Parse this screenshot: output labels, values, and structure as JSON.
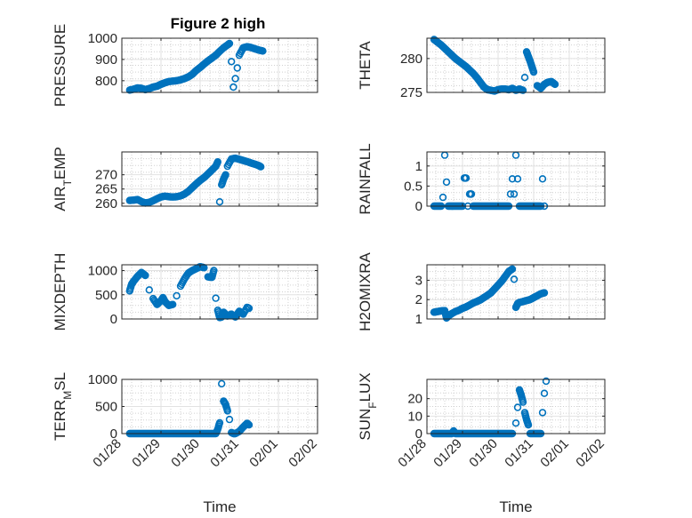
{
  "figure": {
    "title": "Figure 2 high"
  },
  "chart_data": [
    {
      "type": "scatter",
      "id": "pressure",
      "ylabel": "PRESSURE",
      "xlim": [
        "01/28",
        "02/02"
      ],
      "ylim": [
        745,
        1000
      ],
      "yticks": [
        800,
        900,
        1000
      ],
      "xticks": [],
      "marker_color": "#0072BD",
      "grid": true,
      "points": [
        [
          0.2,
          756
        ],
        [
          0.3,
          760
        ],
        [
          0.4,
          766
        ],
        [
          0.5,
          764
        ],
        [
          0.6,
          758
        ],
        [
          0.7,
          763
        ],
        [
          0.8,
          770
        ],
        [
          0.9,
          774
        ],
        [
          1.0,
          783
        ],
        [
          1.1,
          790
        ],
        [
          1.2,
          796
        ],
        [
          1.3,
          798
        ],
        [
          1.4,
          800
        ],
        [
          1.5,
          804
        ],
        [
          1.6,
          810
        ],
        [
          1.7,
          818
        ],
        [
          1.8,
          830
        ],
        [
          1.9,
          848
        ],
        [
          2.0,
          862
        ],
        [
          2.1,
          878
        ],
        [
          2.2,
          893
        ],
        [
          2.3,
          906
        ],
        [
          2.4,
          920
        ],
        [
          2.5,
          938
        ],
        [
          2.6,
          955
        ],
        [
          2.7,
          968
        ],
        [
          2.75,
          975
        ],
        [
          2.8,
          890
        ],
        [
          2.85,
          770
        ],
        [
          2.9,
          810
        ],
        [
          2.95,
          860
        ],
        [
          3.0,
          920
        ],
        [
          3.1,
          955
        ],
        [
          3.2,
          960
        ],
        [
          3.3,
          956
        ],
        [
          3.4,
          950
        ],
        [
          3.5,
          944
        ],
        [
          3.6,
          940
        ]
      ]
    },
    {
      "type": "scatter",
      "id": "theta",
      "ylabel": "THETA",
      "xlim": [
        "01/28",
        "02/02"
      ],
      "ylim": [
        275,
        283
      ],
      "yticks": [
        275,
        280
      ],
      "xticks": [],
      "marker_color": "#0072BD",
      "grid": true,
      "points": [
        [
          0.2,
          282.8
        ],
        [
          0.3,
          282.4
        ],
        [
          0.4,
          282.0
        ],
        [
          0.5,
          281.5
        ],
        [
          0.6,
          281.0
        ],
        [
          0.7,
          280.5
        ],
        [
          0.8,
          280.0
        ],
        [
          0.9,
          279.6
        ],
        [
          1.0,
          279.2
        ],
        [
          1.1,
          278.8
        ],
        [
          1.2,
          278.3
        ],
        [
          1.3,
          277.8
        ],
        [
          1.4,
          277.2
        ],
        [
          1.5,
          276.5
        ],
        [
          1.6,
          275.8
        ],
        [
          1.7,
          275.4
        ],
        [
          1.8,
          275.3
        ],
        [
          1.9,
          275.2
        ],
        [
          2.0,
          275.4
        ],
        [
          2.1,
          275.5
        ],
        [
          2.2,
          275.5
        ],
        [
          2.3,
          275.4
        ],
        [
          2.4,
          275.6
        ],
        [
          2.5,
          275.3
        ],
        [
          2.6,
          275.5
        ],
        [
          2.7,
          275.3
        ],
        [
          2.75,
          277.2
        ],
        [
          2.8,
          281.0
        ],
        [
          2.85,
          280.3
        ],
        [
          2.9,
          279.6
        ],
        [
          2.95,
          278.8
        ],
        [
          3.0,
          278.0
        ],
        [
          3.1,
          276.0
        ],
        [
          3.2,
          275.6
        ],
        [
          3.3,
          276.2
        ],
        [
          3.4,
          276.5
        ],
        [
          3.5,
          276.6
        ],
        [
          3.6,
          276.2
        ]
      ]
    },
    {
      "type": "scatter",
      "id": "airtemp",
      "ylabel": "AIR_TEMP",
      "xlim": [
        "01/28",
        "02/02"
      ],
      "ylim": [
        259,
        278
      ],
      "yticks": [
        260,
        265,
        270
      ],
      "xticks": [],
      "marker_color": "#0072BD",
      "grid": true,
      "points": [
        [
          0.2,
          261.0
        ],
        [
          0.3,
          261.1
        ],
        [
          0.4,
          261.3
        ],
        [
          0.5,
          260.6
        ],
        [
          0.6,
          260.1
        ],
        [
          0.7,
          260.3
        ],
        [
          0.8,
          260.9
        ],
        [
          0.9,
          261.6
        ],
        [
          1.0,
          262.2
        ],
        [
          1.1,
          262.5
        ],
        [
          1.2,
          262.3
        ],
        [
          1.3,
          262.2
        ],
        [
          1.4,
          262.3
        ],
        [
          1.5,
          262.6
        ],
        [
          1.6,
          263.2
        ],
        [
          1.7,
          264.2
        ],
        [
          1.8,
          265.5
        ],
        [
          1.9,
          266.8
        ],
        [
          2.0,
          268.0
        ],
        [
          2.1,
          269.0
        ],
        [
          2.2,
          270.3
        ],
        [
          2.3,
          271.6
        ],
        [
          2.4,
          273.0
        ],
        [
          2.45,
          274.5
        ],
        [
          2.5,
          260.5
        ],
        [
          2.55,
          266.5
        ],
        [
          2.6,
          268.5
        ],
        [
          2.65,
          270.0
        ],
        [
          2.7,
          273.0
        ],
        [
          2.8,
          275.5
        ],
        [
          2.9,
          275.8
        ],
        [
          3.0,
          275.4
        ],
        [
          3.1,
          275.0
        ],
        [
          3.2,
          274.6
        ],
        [
          3.3,
          274.1
        ],
        [
          3.4,
          273.7
        ],
        [
          3.5,
          273.2
        ],
        [
          3.55,
          272.8
        ]
      ]
    },
    {
      "type": "scatter",
      "id": "rainfall",
      "ylabel": "RAINFALL",
      "xlim": [
        "01/28",
        "02/02"
      ],
      "ylim": [
        0,
        1.35
      ],
      "yticks": [
        0,
        0.5,
        1
      ],
      "xticks": [],
      "marker_color": "#0072BD",
      "grid": true,
      "points": [
        [
          0.2,
          0
        ],
        [
          0.3,
          0
        ],
        [
          0.4,
          0
        ],
        [
          0.45,
          0.22
        ],
        [
          0.5,
          1.27
        ],
        [
          0.55,
          0.6
        ],
        [
          0.6,
          0
        ],
        [
          0.7,
          0
        ],
        [
          0.8,
          0
        ],
        [
          0.9,
          0
        ],
        [
          1.0,
          0
        ],
        [
          1.05,
          0.7
        ],
        [
          1.1,
          0.7
        ],
        [
          1.15,
          0
        ],
        [
          1.2,
          0.3
        ],
        [
          1.25,
          0.3
        ],
        [
          1.3,
          0
        ],
        [
          1.4,
          0
        ],
        [
          1.5,
          0
        ],
        [
          1.6,
          0
        ],
        [
          1.7,
          0
        ],
        [
          1.8,
          0
        ],
        [
          1.9,
          0
        ],
        [
          2.0,
          0
        ],
        [
          2.1,
          0
        ],
        [
          2.2,
          0
        ],
        [
          2.3,
          0
        ],
        [
          2.35,
          0.3
        ],
        [
          2.4,
          0.68
        ],
        [
          2.45,
          0.3
        ],
        [
          2.5,
          1.27
        ],
        [
          2.55,
          0.68
        ],
        [
          2.6,
          0
        ],
        [
          2.7,
          0
        ],
        [
          2.8,
          0
        ],
        [
          2.9,
          0
        ],
        [
          3.0,
          0
        ],
        [
          3.1,
          0
        ],
        [
          3.2,
          0
        ],
        [
          3.25,
          0.68
        ],
        [
          3.3,
          0
        ]
      ]
    },
    {
      "type": "scatter",
      "id": "mixdepth",
      "ylabel": "MIXDEPTH",
      "xlim": [
        "01/28",
        "02/02"
      ],
      "ylim": [
        0,
        1120
      ],
      "yticks": [
        0,
        500,
        1000
      ],
      "xticks": [],
      "marker_color": "#0072BD",
      "grid": true,
      "points": [
        [
          0.2,
          580
        ],
        [
          0.25,
          720
        ],
        [
          0.3,
          780
        ],
        [
          0.4,
          880
        ],
        [
          0.5,
          960
        ],
        [
          0.6,
          900
        ],
        [
          0.7,
          600
        ],
        [
          0.8,
          420
        ],
        [
          0.9,
          300
        ],
        [
          1.0,
          380
        ],
        [
          1.05,
          440
        ],
        [
          1.1,
          360
        ],
        [
          1.2,
          280
        ],
        [
          1.3,
          300
        ],
        [
          1.4,
          480
        ],
        [
          1.5,
          680
        ],
        [
          1.6,
          830
        ],
        [
          1.7,
          950
        ],
        [
          1.8,
          1000
        ],
        [
          1.9,
          1040
        ],
        [
          2.0,
          1080
        ],
        [
          2.1,
          1060
        ],
        [
          2.2,
          870
        ],
        [
          2.3,
          860
        ],
        [
          2.35,
          1000
        ],
        [
          2.4,
          430
        ],
        [
          2.45,
          180
        ],
        [
          2.5,
          30
        ],
        [
          2.55,
          40
        ],
        [
          2.6,
          140
        ],
        [
          2.7,
          60
        ],
        [
          2.8,
          100
        ],
        [
          2.9,
          40
        ],
        [
          3.0,
          160
        ],
        [
          3.1,
          100
        ],
        [
          3.2,
          240
        ],
        [
          3.25,
          220
        ]
      ]
    },
    {
      "type": "scatter",
      "id": "h2omixra",
      "ylabel": "H2OMIXRA",
      "xlim": [
        "01/28",
        "02/02"
      ],
      "ylim": [
        1.0,
        3.8
      ],
      "yticks": [
        1,
        2,
        3
      ],
      "xticks": [],
      "marker_color": "#0072BD",
      "grid": true,
      "points": [
        [
          0.2,
          1.35
        ],
        [
          0.3,
          1.38
        ],
        [
          0.4,
          1.42
        ],
        [
          0.5,
          1.43
        ],
        [
          0.55,
          1.05
        ],
        [
          0.6,
          1.15
        ],
        [
          0.7,
          1.28
        ],
        [
          0.8,
          1.38
        ],
        [
          0.9,
          1.45
        ],
        [
          1.0,
          1.55
        ],
        [
          1.1,
          1.62
        ],
        [
          1.2,
          1.72
        ],
        [
          1.3,
          1.82
        ],
        [
          1.4,
          1.9
        ],
        [
          1.5,
          1.98
        ],
        [
          1.6,
          2.1
        ],
        [
          1.7,
          2.22
        ],
        [
          1.8,
          2.35
        ],
        [
          1.9,
          2.55
        ],
        [
          2.0,
          2.75
        ],
        [
          2.1,
          2.95
        ],
        [
          2.2,
          3.2
        ],
        [
          2.3,
          3.45
        ],
        [
          2.4,
          3.58
        ],
        [
          2.45,
          3.05
        ],
        [
          2.5,
          1.6
        ],
        [
          2.55,
          1.8
        ],
        [
          2.6,
          1.85
        ],
        [
          2.7,
          1.9
        ],
        [
          2.8,
          1.95
        ],
        [
          2.9,
          2.0
        ],
        [
          3.0,
          2.1
        ],
        [
          3.1,
          2.2
        ],
        [
          3.2,
          2.3
        ],
        [
          3.3,
          2.35
        ]
      ]
    },
    {
      "type": "scatter",
      "id": "terrmsl",
      "ylabel": "TERR_MSL",
      "xlim": [
        "01/28",
        "02/02"
      ],
      "ylim": [
        0,
        1000
      ],
      "yticks": [
        0,
        500,
        1000
      ],
      "xticks": [
        "01/28",
        "01/29",
        "01/30",
        "01/31",
        "02/01",
        "02/02"
      ],
      "xlabel": "Time",
      "marker_color": "#0072BD",
      "grid": true,
      "points": [
        [
          0.2,
          0
        ],
        [
          0.3,
          0
        ],
        [
          0.4,
          0
        ],
        [
          0.5,
          0
        ],
        [
          0.6,
          0
        ],
        [
          0.7,
          0
        ],
        [
          0.8,
          0
        ],
        [
          0.9,
          0
        ],
        [
          1.0,
          0
        ],
        [
          1.1,
          0
        ],
        [
          1.2,
          0
        ],
        [
          1.3,
          0
        ],
        [
          1.4,
          0
        ],
        [
          1.5,
          0
        ],
        [
          1.6,
          0
        ],
        [
          1.7,
          0
        ],
        [
          1.8,
          0
        ],
        [
          1.9,
          0
        ],
        [
          2.0,
          0
        ],
        [
          2.1,
          0
        ],
        [
          2.2,
          0
        ],
        [
          2.3,
          0
        ],
        [
          2.4,
          0
        ],
        [
          2.45,
          80
        ],
        [
          2.5,
          200
        ],
        [
          2.55,
          920
        ],
        [
          2.6,
          600
        ],
        [
          2.65,
          540
        ],
        [
          2.7,
          420
        ],
        [
          2.75,
          260
        ],
        [
          2.8,
          20
        ],
        [
          2.85,
          0
        ],
        [
          2.9,
          0
        ],
        [
          3.0,
          40
        ],
        [
          3.1,
          120
        ],
        [
          3.2,
          190
        ],
        [
          3.25,
          160
        ]
      ]
    },
    {
      "type": "scatter",
      "id": "sunflux",
      "ylabel": "SUN_FLUX",
      "xlim": [
        "01/28",
        "02/02"
      ],
      "ylim": [
        0,
        31
      ],
      "yticks": [
        0,
        10,
        20
      ],
      "xticks": [
        "01/28",
        "01/29",
        "01/30",
        "01/31",
        "02/01",
        "02/02"
      ],
      "xlabel": "Time",
      "marker_color": "#0072BD",
      "grid": true,
      "points": [
        [
          0.2,
          0
        ],
        [
          0.3,
          0
        ],
        [
          0.4,
          0
        ],
        [
          0.5,
          0
        ],
        [
          0.6,
          0
        ],
        [
          0.7,
          0
        ],
        [
          0.75,
          1.5
        ],
        [
          0.8,
          0
        ],
        [
          0.9,
          0
        ],
        [
          1.0,
          0
        ],
        [
          1.1,
          0
        ],
        [
          1.2,
          0
        ],
        [
          1.3,
          0
        ],
        [
          1.4,
          0
        ],
        [
          1.5,
          0
        ],
        [
          1.6,
          0
        ],
        [
          1.7,
          0
        ],
        [
          1.8,
          0
        ],
        [
          1.9,
          0
        ],
        [
          2.0,
          0
        ],
        [
          2.1,
          0
        ],
        [
          2.2,
          0
        ],
        [
          2.3,
          0
        ],
        [
          2.4,
          0
        ],
        [
          2.5,
          6
        ],
        [
          2.55,
          15
        ],
        [
          2.6,
          25
        ],
        [
          2.65,
          22
        ],
        [
          2.7,
          18
        ],
        [
          2.75,
          12
        ],
        [
          2.8,
          8
        ],
        [
          2.85,
          5
        ],
        [
          2.9,
          0
        ],
        [
          3.0,
          0
        ],
        [
          3.1,
          0
        ],
        [
          3.2,
          0
        ],
        [
          3.25,
          12
        ],
        [
          3.3,
          23
        ],
        [
          3.35,
          30
        ]
      ]
    }
  ]
}
